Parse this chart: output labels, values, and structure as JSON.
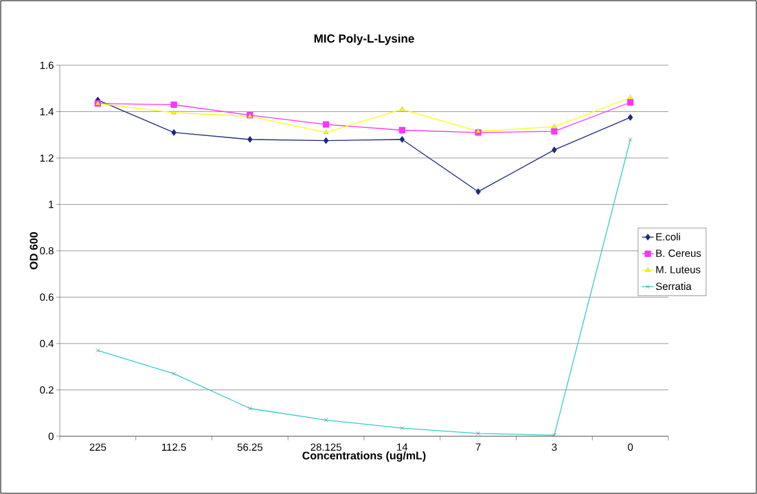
{
  "chart_data": {
    "type": "line",
    "title": "MIC Poly-L-Lysine",
    "xlabel": "Concentrations (ug/mL)",
    "ylabel": "OD 600",
    "categories": [
      "225",
      "112.5",
      "56.25",
      "28.125",
      "14",
      "7",
      "3",
      "0"
    ],
    "series": [
      {
        "name": "E.coli",
        "color": "#1f2a80",
        "marker": "diamond",
        "values": [
          1.45,
          1.31,
          1.28,
          1.275,
          1.28,
          1.055,
          1.235,
          1.375
        ]
      },
      {
        "name": "B. Cereus",
        "color": "#ff33ff",
        "marker": "square",
        "values": [
          1.435,
          1.43,
          1.385,
          1.345,
          1.32,
          1.31,
          1.315,
          1.44
        ]
      },
      {
        "name": "M. Luteus",
        "color": "#ffff00",
        "marker": "triangle",
        "values": [
          1.435,
          1.395,
          1.38,
          1.31,
          1.41,
          1.315,
          1.335,
          1.46
        ]
      },
      {
        "name": "Serratia",
        "color": "#33cccc",
        "marker": "cross",
        "values": [
          0.37,
          0.27,
          0.12,
          0.07,
          0.035,
          0.012,
          0.005,
          1.28
        ]
      }
    ],
    "ylim": [
      0,
      1.6
    ],
    "yticks": [
      0,
      0.2,
      0.4,
      0.6,
      0.8,
      1,
      1.2,
      1.4,
      1.6
    ],
    "grid": "y",
    "legend": "right"
  }
}
